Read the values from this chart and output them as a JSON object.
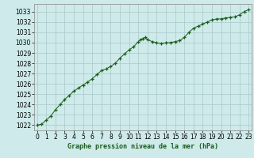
{
  "x": [
    0,
    0.5,
    1,
    1.5,
    2,
    2.5,
    3,
    3.5,
    4,
    4.5,
    5,
    5.5,
    6,
    6.5,
    7,
    7.5,
    8,
    8.5,
    9,
    9.5,
    10,
    10.5,
    11,
    11.25,
    11.5,
    11.75,
    12,
    12.5,
    13,
    13.5,
    14,
    14.5,
    15,
    15.5,
    16,
    16.5,
    17,
    17.5,
    18,
    18.5,
    19,
    19.5,
    20,
    20.5,
    21,
    21.5,
    22,
    22.5,
    23
  ],
  "y": [
    1022.0,
    1022.1,
    1022.5,
    1022.9,
    1023.5,
    1024.0,
    1024.5,
    1024.9,
    1025.3,
    1025.6,
    1025.9,
    1026.2,
    1026.5,
    1026.9,
    1027.3,
    1027.45,
    1027.7,
    1028.0,
    1028.5,
    1028.9,
    1029.3,
    1029.6,
    1030.1,
    1030.3,
    1030.4,
    1030.5,
    1030.3,
    1030.1,
    1030.0,
    1029.9,
    1030.0,
    1030.0,
    1030.1,
    1030.2,
    1030.5,
    1031.0,
    1031.4,
    1031.6,
    1031.8,
    1032.0,
    1032.2,
    1032.3,
    1032.3,
    1032.4,
    1032.45,
    1032.5,
    1032.7,
    1033.0,
    1033.2
  ],
  "line_color": "#1a5c1a",
  "marker_color": "#1a5c1a",
  "bg_color": "#ceeaea",
  "grid_color": "#aac8c8",
  "title": "Graphe pression niveau de la mer (hPa)",
  "ylim_min": 1021.5,
  "ylim_max": 1033.75,
  "xlim_min": -0.3,
  "xlim_max": 23.3,
  "yticks": [
    1022,
    1023,
    1024,
    1025,
    1026,
    1027,
    1028,
    1029,
    1030,
    1031,
    1032,
    1033
  ],
  "xticks": [
    0,
    1,
    2,
    3,
    4,
    5,
    6,
    7,
    8,
    9,
    10,
    11,
    12,
    13,
    14,
    15,
    16,
    17,
    18,
    19,
    20,
    21,
    22,
    23
  ],
  "title_fontsize": 6.0,
  "tick_fontsize": 5.5
}
